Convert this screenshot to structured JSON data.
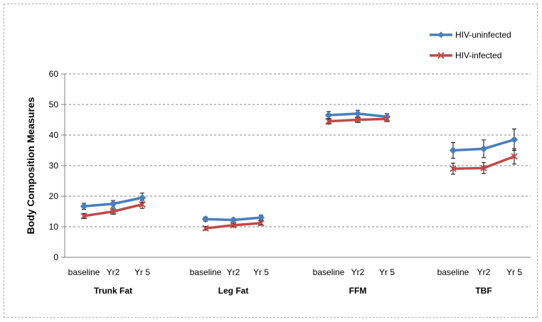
{
  "chart_data": {
    "type": "line",
    "ylabel": "Body Composition Measures",
    "ylim": [
      0,
      60
    ],
    "yticks": [
      0,
      10,
      20,
      30,
      40,
      50,
      60
    ],
    "grid": "horizontal dashed",
    "legend_position": "top-right",
    "groups": [
      {
        "name": "Trunk Fat",
        "categories": [
          "baseline",
          "Yr2",
          "Yr 5"
        ]
      },
      {
        "name": "Leg Fat",
        "categories": [
          "baseline",
          "Yr2",
          "Yr 5"
        ]
      },
      {
        "name": "FFM",
        "categories": [
          "baseline",
          "Yr2",
          "Yr 5"
        ]
      },
      {
        "name": "TBF",
        "categories": [
          "baseline",
          "Yr2",
          "Yr 5"
        ]
      }
    ],
    "series": [
      {
        "name": "HIV-uninfected",
        "color": "#4a7ebb",
        "marker": "diamond",
        "values": [
          [
            16.7,
            17.5,
            19.5
          ],
          [
            12.5,
            12.2,
            13.0
          ],
          [
            46.5,
            47.0,
            46.0
          ],
          [
            35.0,
            35.5,
            38.5
          ]
        ],
        "error": [
          [
            1.0,
            1.1,
            1.5
          ],
          [
            0.7,
            0.6,
            0.8
          ],
          [
            1.2,
            1.1,
            1.0
          ],
          [
            2.6,
            2.9,
            3.5
          ]
        ]
      },
      {
        "name": "HIV-infected",
        "color": "#be4b48",
        "marker": "x",
        "values": [
          [
            13.5,
            15.0,
            17.3
          ],
          [
            9.5,
            10.5,
            11.2
          ],
          [
            44.5,
            45.0,
            45.3
          ],
          [
            29.0,
            29.2,
            33.0
          ]
        ],
        "error": [
          [
            0.8,
            0.9,
            1.3
          ],
          [
            0.6,
            0.6,
            0.7
          ],
          [
            0.9,
            0.9,
            0.9
          ],
          [
            1.8,
            1.8,
            2.5
          ]
        ]
      }
    ]
  }
}
